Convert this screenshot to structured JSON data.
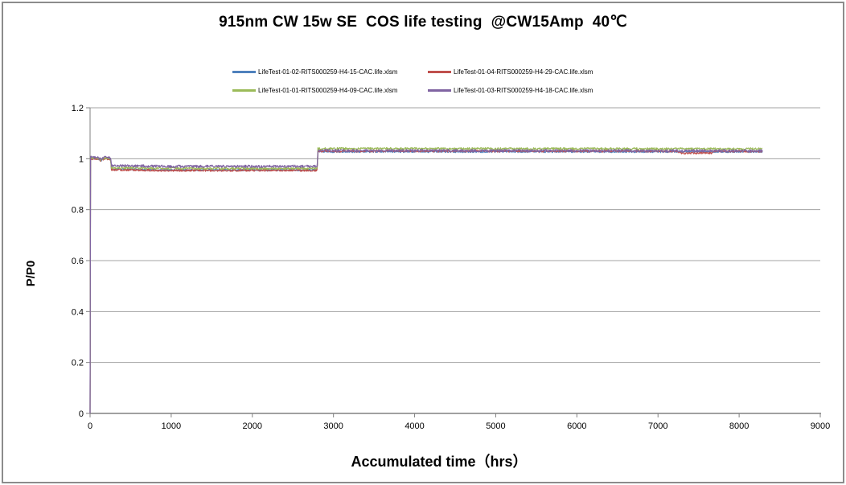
{
  "chart_data": {
    "type": "line",
    "title": "915nm CW 15w SE  COS life testing  @CW15Amp  40℃",
    "xlabel": "Accumulated time（hrs）",
    "ylabel": "P/P0",
    "xlim": [
      0,
      9000
    ],
    "ylim": [
      0,
      1.2
    ],
    "x_ticks": [
      "0",
      "1000",
      "2000",
      "3000",
      "4000",
      "5000",
      "6000",
      "7000",
      "8000",
      "9000"
    ],
    "y_ticks": [
      "0",
      "0.2",
      "0.4",
      "0.6",
      "0.8",
      "1",
      "1.2"
    ],
    "grid": "horizontal-gridlines-only",
    "legend_position": "top-center-two-rows",
    "data_note": "noisy measurement traces; each series starts at (0,0) making a vertical line at x=0, runs near 1.0 until ~260 hrs, steps down to ~0.95-0.97 until ~2805 hrs, then steps up to ~1.02-1.04 until end of data at ~8290 hrs",
    "series": [
      {
        "name": "LifeTest-01-02-RITS000259-H4-15-CAC.life.xlsm",
        "color": "#4F81BD",
        "noise": 0.004,
        "seed": 101,
        "anchors": [
          [
            0,
            0
          ],
          [
            3,
            1.001
          ],
          [
            90,
            1.001
          ],
          [
            135,
            0.993
          ],
          [
            180,
            1.003
          ],
          [
            255,
            0.998
          ],
          [
            263,
            0.959
          ],
          [
            900,
            0.956
          ],
          [
            2800,
            0.956
          ],
          [
            2808,
            1.028
          ],
          [
            8290,
            1.028
          ]
        ]
      },
      {
        "name": "LifeTest-01-04-RITS000259-H4-29-CAC.life.xlsm",
        "color": "#C0504D",
        "noise": 0.004,
        "seed": 202,
        "anchors": [
          [
            0,
            0
          ],
          [
            3,
            1.0
          ],
          [
            90,
            1.0
          ],
          [
            135,
            0.992
          ],
          [
            180,
            1.002
          ],
          [
            255,
            0.997
          ],
          [
            263,
            0.957
          ],
          [
            900,
            0.954
          ],
          [
            2800,
            0.954
          ],
          [
            2808,
            1.03
          ],
          [
            7240,
            1.03
          ],
          [
            7280,
            1.022
          ],
          [
            7660,
            1.022
          ],
          [
            7700,
            1.03
          ],
          [
            8290,
            1.029
          ]
        ]
      },
      {
        "name": "LifeTest-01-01-RITS000259-H4-09-CAC.life.xlsm",
        "color": "#9BBB59",
        "noise": 0.004,
        "seed": 303,
        "anchors": [
          [
            0,
            0
          ],
          [
            3,
            1.003
          ],
          [
            90,
            1.003
          ],
          [
            135,
            0.995
          ],
          [
            180,
            1.005
          ],
          [
            255,
            1.0
          ],
          [
            263,
            0.964
          ],
          [
            900,
            0.962
          ],
          [
            2800,
            0.962
          ],
          [
            2808,
            1.04
          ],
          [
            8290,
            1.039
          ]
        ]
      },
      {
        "name": "LifeTest-01-03-RITS000259-H4-18-CAC.life.xlsm",
        "color": "#8064A2",
        "noise": 0.005,
        "seed": 404,
        "anchors": [
          [
            0,
            0
          ],
          [
            3,
            1.006
          ],
          [
            90,
            1.006
          ],
          [
            135,
            0.997
          ],
          [
            180,
            1.008
          ],
          [
            255,
            1.002
          ],
          [
            263,
            0.973
          ],
          [
            900,
            0.97
          ],
          [
            2800,
            0.97
          ],
          [
            2808,
            1.032
          ],
          [
            8290,
            1.031
          ]
        ]
      }
    ],
    "colors": {
      "axis": "#808080",
      "gridline": "#A3A3A3",
      "frame_border": "#8C8C8C",
      "text": "#000000",
      "background": "#FFFFFF"
    }
  }
}
